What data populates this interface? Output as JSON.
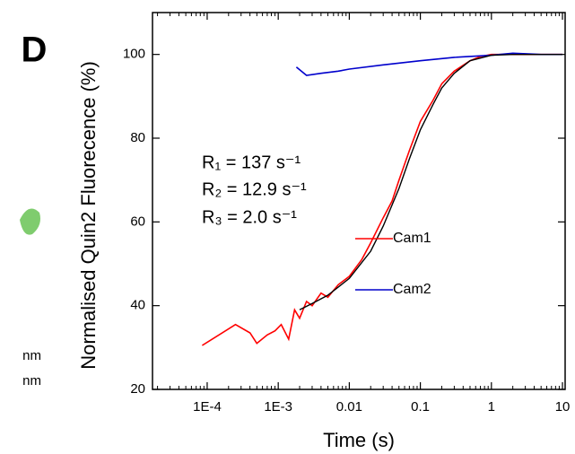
{
  "chart_data": {
    "type": "line",
    "panel_label": "D",
    "side_labels": [
      "nm",
      "nm"
    ],
    "xlabel": "Time (s)",
    "ylabel": "Normalised Quin2 Fluorecence (%)",
    "xscale": "log",
    "xlim": [
      1.7e-05,
      10.9
    ],
    "ylim": [
      20,
      110
    ],
    "xticks": [
      {
        "value": 0.0001,
        "label": "1E-4"
      },
      {
        "value": 0.001,
        "label": "1E-3"
      },
      0.01,
      0.1,
      1,
      10
    ],
    "yticks": [
      20,
      40,
      60,
      80,
      100
    ],
    "annotations": [
      "R₁ = 137 s⁻¹",
      "R₂ = 12.9 s⁻¹",
      "R₃ = 2.0 s⁻¹"
    ],
    "legend": "right",
    "series": [
      {
        "name": "Cam1",
        "color": "#ff0000",
        "x": [
          8.5e-05,
          0.00025,
          0.0004,
          0.0005,
          0.0007,
          0.0009,
          0.0011,
          0.0014,
          0.0017,
          0.002,
          0.0025,
          0.003,
          0.004,
          0.005,
          0.007,
          0.01,
          0.015,
          0.02,
          0.03,
          0.04,
          0.05,
          0.07,
          0.1,
          0.15,
          0.2,
          0.3,
          0.5,
          0.7,
          1,
          2,
          5,
          10
        ],
        "values": [
          30.5,
          35.5,
          33.5,
          31,
          33,
          34,
          35.5,
          32,
          39,
          37,
          41,
          40,
          43,
          42,
          45,
          47,
          51,
          55,
          61,
          65,
          70,
          77,
          84,
          89,
          93,
          96,
          98.5,
          99.5,
          100,
          100,
          100,
          100
        ]
      },
      {
        "name": "Cam2",
        "color": "#0000cc",
        "x": [
          0.0018,
          0.0025,
          0.004,
          0.007,
          0.01,
          0.03,
          0.1,
          0.3,
          1,
          2,
          5,
          10
        ],
        "values": [
          97,
          95,
          95.5,
          96,
          96.5,
          97.5,
          98.5,
          99.3,
          99.8,
          100.3,
          100,
          100
        ]
      },
      {
        "color": "#000000",
        "x": [
          0.002,
          0.003,
          0.005,
          0.01,
          0.02,
          0.03,
          0.05,
          0.07,
          0.1,
          0.15,
          0.2,
          0.3,
          0.5,
          1,
          2,
          5,
          10
        ],
        "values": [
          39,
          40.5,
          42.5,
          46.5,
          53,
          59,
          68,
          75,
          82,
          88,
          92,
          95.5,
          98.5,
          99.8,
          100,
          100,
          100
        ]
      }
    ]
  }
}
